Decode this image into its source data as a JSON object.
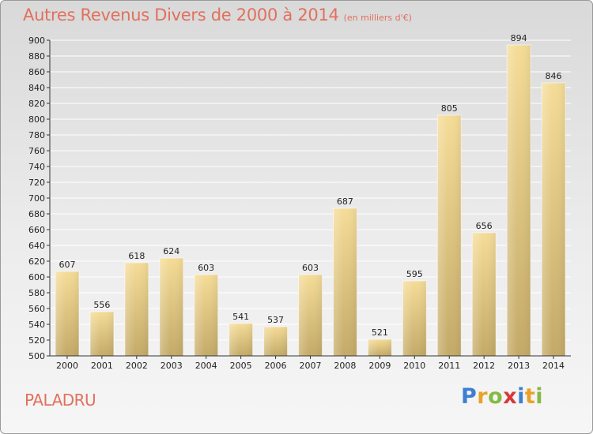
{
  "title": "Autres Revenus Divers de 2000 à 2014",
  "subtitle": "(en milliers d'€)",
  "place": "PALADRU",
  "logo": {
    "letters": [
      "P",
      "r",
      "o",
      "x",
      "i",
      "t",
      "i"
    ],
    "colors": [
      "#3d7fd0",
      "#e9a227",
      "#86b944",
      "#d9383a",
      "#3d7fd0",
      "#e9a227",
      "#86b944"
    ]
  },
  "colors": {
    "bar_light": "#f5dc97",
    "bar_dark": "#c4aa68",
    "title": "#e1705d",
    "grid": "#ffffff"
  },
  "chart_data": {
    "type": "bar",
    "title": "Autres Revenus Divers de 2000 à 2014",
    "subtitle": "(en milliers d'€)",
    "categories": [
      "2000",
      "2001",
      "2002",
      "2003",
      "2004",
      "2005",
      "2006",
      "2007",
      "2008",
      "2009",
      "2010",
      "2011",
      "2012",
      "2013",
      "2014"
    ],
    "values": [
      607,
      556,
      618,
      624,
      603,
      541,
      537,
      603,
      687,
      521,
      595,
      805,
      656,
      894,
      846
    ],
    "ylim": [
      500,
      900
    ],
    "ytick_step": 20,
    "grid": true,
    "show_values": true
  }
}
